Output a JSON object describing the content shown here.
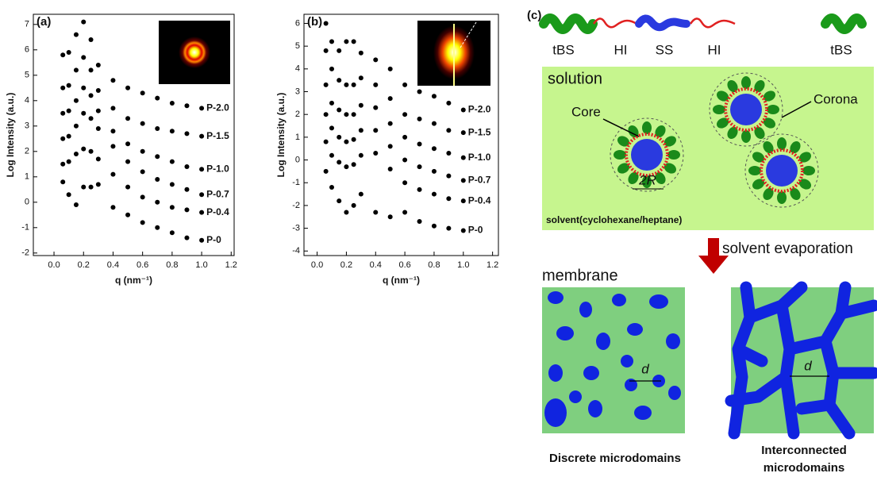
{
  "chart_data": [
    {
      "type": "scatter",
      "title": "(a)",
      "x_label": "q (nm⁻¹)",
      "y_label": "Log Intensity (a.u.)",
      "x": [
        0.06,
        0.1,
        0.15,
        0.2,
        0.25,
        0.3,
        0.4,
        0.5,
        0.6,
        0.7,
        0.8,
        0.9,
        1.0
      ],
      "series": [
        {
          "name": "P-2.0",
          "color": "#000000",
          "values": [
            5.8,
            5.9,
            6.6,
            7.1,
            6.4,
            5.4,
            4.8,
            4.5,
            4.3,
            4.1,
            3.9,
            3.8,
            3.7
          ]
        },
        {
          "name": "P-1.5",
          "color": "#000000",
          "values": [
            4.5,
            4.6,
            5.2,
            5.7,
            5.2,
            4.4,
            3.7,
            3.3,
            3.1,
            2.9,
            2.8,
            2.7,
            2.6
          ]
        },
        {
          "name": "P-1.0",
          "color": "#000000",
          "values": [
            3.5,
            3.6,
            4.0,
            4.5,
            4.2,
            3.6,
            2.8,
            2.3,
            2.0,
            1.8,
            1.6,
            1.4,
            1.3
          ]
        },
        {
          "name": "P-0.7",
          "color": "#000000",
          "values": [
            2.5,
            2.6,
            3.0,
            3.5,
            3.3,
            2.9,
            2.2,
            1.6,
            1.2,
            0.9,
            0.7,
            0.5,
            0.3
          ]
        },
        {
          "name": "P-0.4",
          "color": "#000000",
          "values": [
            1.5,
            1.6,
            1.9,
            2.1,
            2.0,
            1.7,
            1.1,
            0.6,
            0.2,
            0.0,
            -0.2,
            -0.3,
            -0.4
          ]
        },
        {
          "name": "P-0",
          "color": "#000000",
          "values": [
            0.8,
            0.3,
            -0.1,
            0.6,
            0.6,
            0.7,
            -0.2,
            -0.5,
            -0.8,
            -1.0,
            -1.2,
            -1.4,
            -1.5
          ]
        }
      ],
      "xlim": [
        -0.14,
        1.22
      ],
      "ylim": [
        -2.1,
        7.4
      ],
      "xticks": [
        {
          "value": 0,
          "label": "0.0"
        },
        0.2,
        0.4,
        0.6,
        0.8,
        {
          "value": 1,
          "label": "1.0"
        },
        1.2
      ],
      "yticks": [
        -2,
        -1,
        0,
        1,
        2,
        3,
        4,
        5,
        6,
        7
      ]
    },
    {
      "type": "scatter",
      "title": "(b)",
      "x_label": "q (nm⁻¹)",
      "y_label": "Log Intensity (a.u.)",
      "x": [
        0.06,
        0.1,
        0.15,
        0.2,
        0.25,
        0.3,
        0.4,
        0.5,
        0.6,
        0.7,
        0.8,
        0.9,
        1.0
      ],
      "series": [
        {
          "name": "P-2.0",
          "color": "#000000",
          "values": [
            6.0,
            5.2,
            4.8,
            5.2,
            5.2,
            4.7,
            4.4,
            4.0,
            3.3,
            3.0,
            2.8,
            2.5,
            2.2
          ]
        },
        {
          "name": "P-1.5",
          "color": "#000000",
          "values": [
            4.8,
            4.0,
            3.5,
            3.3,
            3.3,
            3.6,
            3.3,
            2.7,
            2.0,
            1.8,
            1.6,
            1.3,
            1.2
          ]
        },
        {
          "name": "P-1.0",
          "color": "#000000",
          "values": [
            3.3,
            2.5,
            2.2,
            2.0,
            2.0,
            2.4,
            2.3,
            1.6,
            1.0,
            0.7,
            0.5,
            0.3,
            0.1
          ]
        },
        {
          "name": "P-0.7",
          "color": "#000000",
          "values": [
            2.0,
            1.4,
            1.0,
            0.8,
            0.9,
            1.3,
            1.3,
            0.6,
            0.0,
            -0.3,
            -0.5,
            -0.7,
            -0.9
          ]
        },
        {
          "name": "P-0.4",
          "color": "#000000",
          "values": [
            0.8,
            0.2,
            -0.1,
            -0.3,
            -0.2,
            0.2,
            0.3,
            -0.4,
            -1.0,
            -1.3,
            -1.5,
            -1.7,
            -1.8
          ]
        },
        {
          "name": "P-0",
          "color": "#000000",
          "values": [
            -0.5,
            -1.2,
            -1.8,
            -2.3,
            -2.0,
            -1.5,
            -2.3,
            -2.5,
            -2.3,
            -2.7,
            -2.9,
            -3.0,
            -3.1
          ]
        }
      ],
      "xlim": [
        -0.09,
        1.24
      ],
      "ylim": [
        -4.2,
        6.4
      ],
      "xticks": [
        {
          "value": 0,
          "label": "0.0"
        },
        0.2,
        0.4,
        0.6,
        0.8,
        {
          "value": 1,
          "label": "1.0"
        },
        1.2
      ],
      "yticks": [
        -4,
        -3,
        -2,
        -1,
        0,
        1,
        2,
        3,
        4,
        5,
        6
      ]
    }
  ],
  "diagram": {
    "panel": "(c)",
    "blocks": [
      "tBS",
      "HI",
      "SS",
      "HI",
      "tBS"
    ],
    "solution": "solution",
    "core": "Core",
    "corona": "Corona",
    "radius": "2R",
    "solvent": "solvent(cyclohexane/heptane)",
    "process": "solvent evaporation",
    "membrane": "membrane",
    "spacing": "d",
    "left_caption": "Discrete microdomains",
    "right_caption": [
      "Interconnected",
      "microdomains"
    ]
  }
}
